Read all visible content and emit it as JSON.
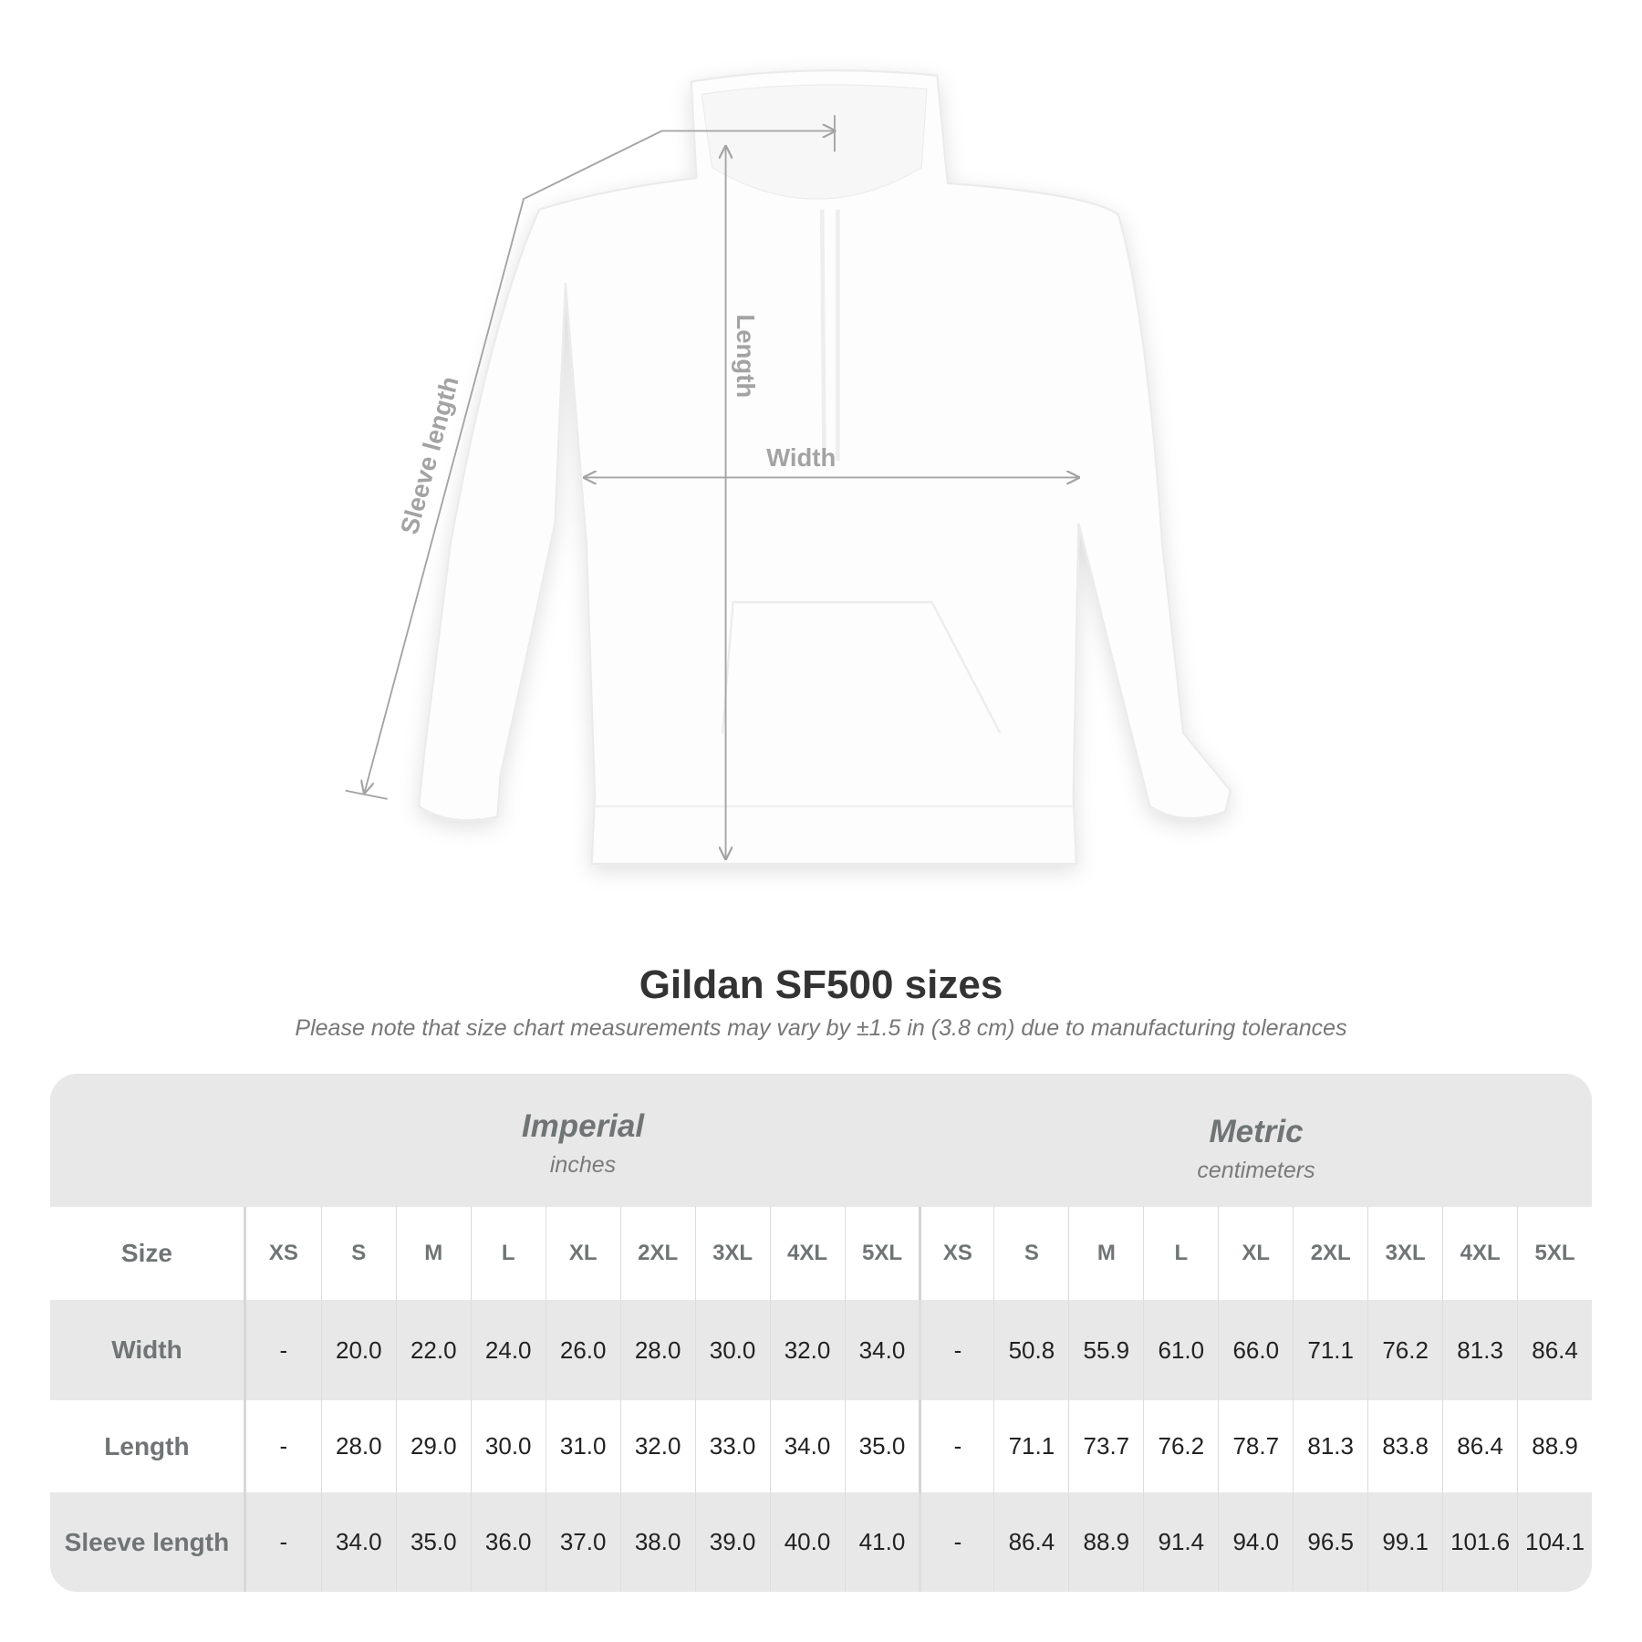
{
  "diagram": {
    "labels": {
      "sleeve_length": "Sleeve length",
      "length": "Length",
      "width": "Width"
    },
    "line_color": "#a3a3a3"
  },
  "title": "Gildan SF500 sizes",
  "note": "Please note that size chart measurements may vary by ±1.5 in (3.8 cm) due to manufacturing tolerances",
  "table": {
    "imperial": {
      "name": "Imperial",
      "unit": "inches"
    },
    "metric": {
      "name": "Metric",
      "unit": "centimeters"
    },
    "size_label": "Size",
    "sizes": [
      "XS",
      "S",
      "M",
      "L",
      "XL",
      "2XL",
      "3XL",
      "4XL",
      "5XL"
    ],
    "rows": [
      {
        "label": "Width",
        "imperial": [
          "-",
          "20.0",
          "22.0",
          "24.0",
          "26.0",
          "28.0",
          "30.0",
          "32.0",
          "34.0"
        ],
        "metric": [
          "-",
          "50.8",
          "55.9",
          "61.0",
          "66.0",
          "71.1",
          "76.2",
          "81.3",
          "86.4"
        ]
      },
      {
        "label": "Length",
        "imperial": [
          "-",
          "28.0",
          "29.0",
          "30.0",
          "31.0",
          "32.0",
          "33.0",
          "34.0",
          "35.0"
        ],
        "metric": [
          "-",
          "71.1",
          "73.7",
          "76.2",
          "78.7",
          "81.3",
          "83.8",
          "86.4",
          "88.9"
        ]
      },
      {
        "label": "Sleeve length",
        "imperial": [
          "-",
          "34.0",
          "35.0",
          "36.0",
          "37.0",
          "38.0",
          "39.0",
          "40.0",
          "41.0"
        ],
        "metric": [
          "-",
          "86.4",
          "88.9",
          "91.4",
          "94.0",
          "96.5",
          "99.1",
          "101.6",
          "104.1"
        ]
      }
    ]
  }
}
